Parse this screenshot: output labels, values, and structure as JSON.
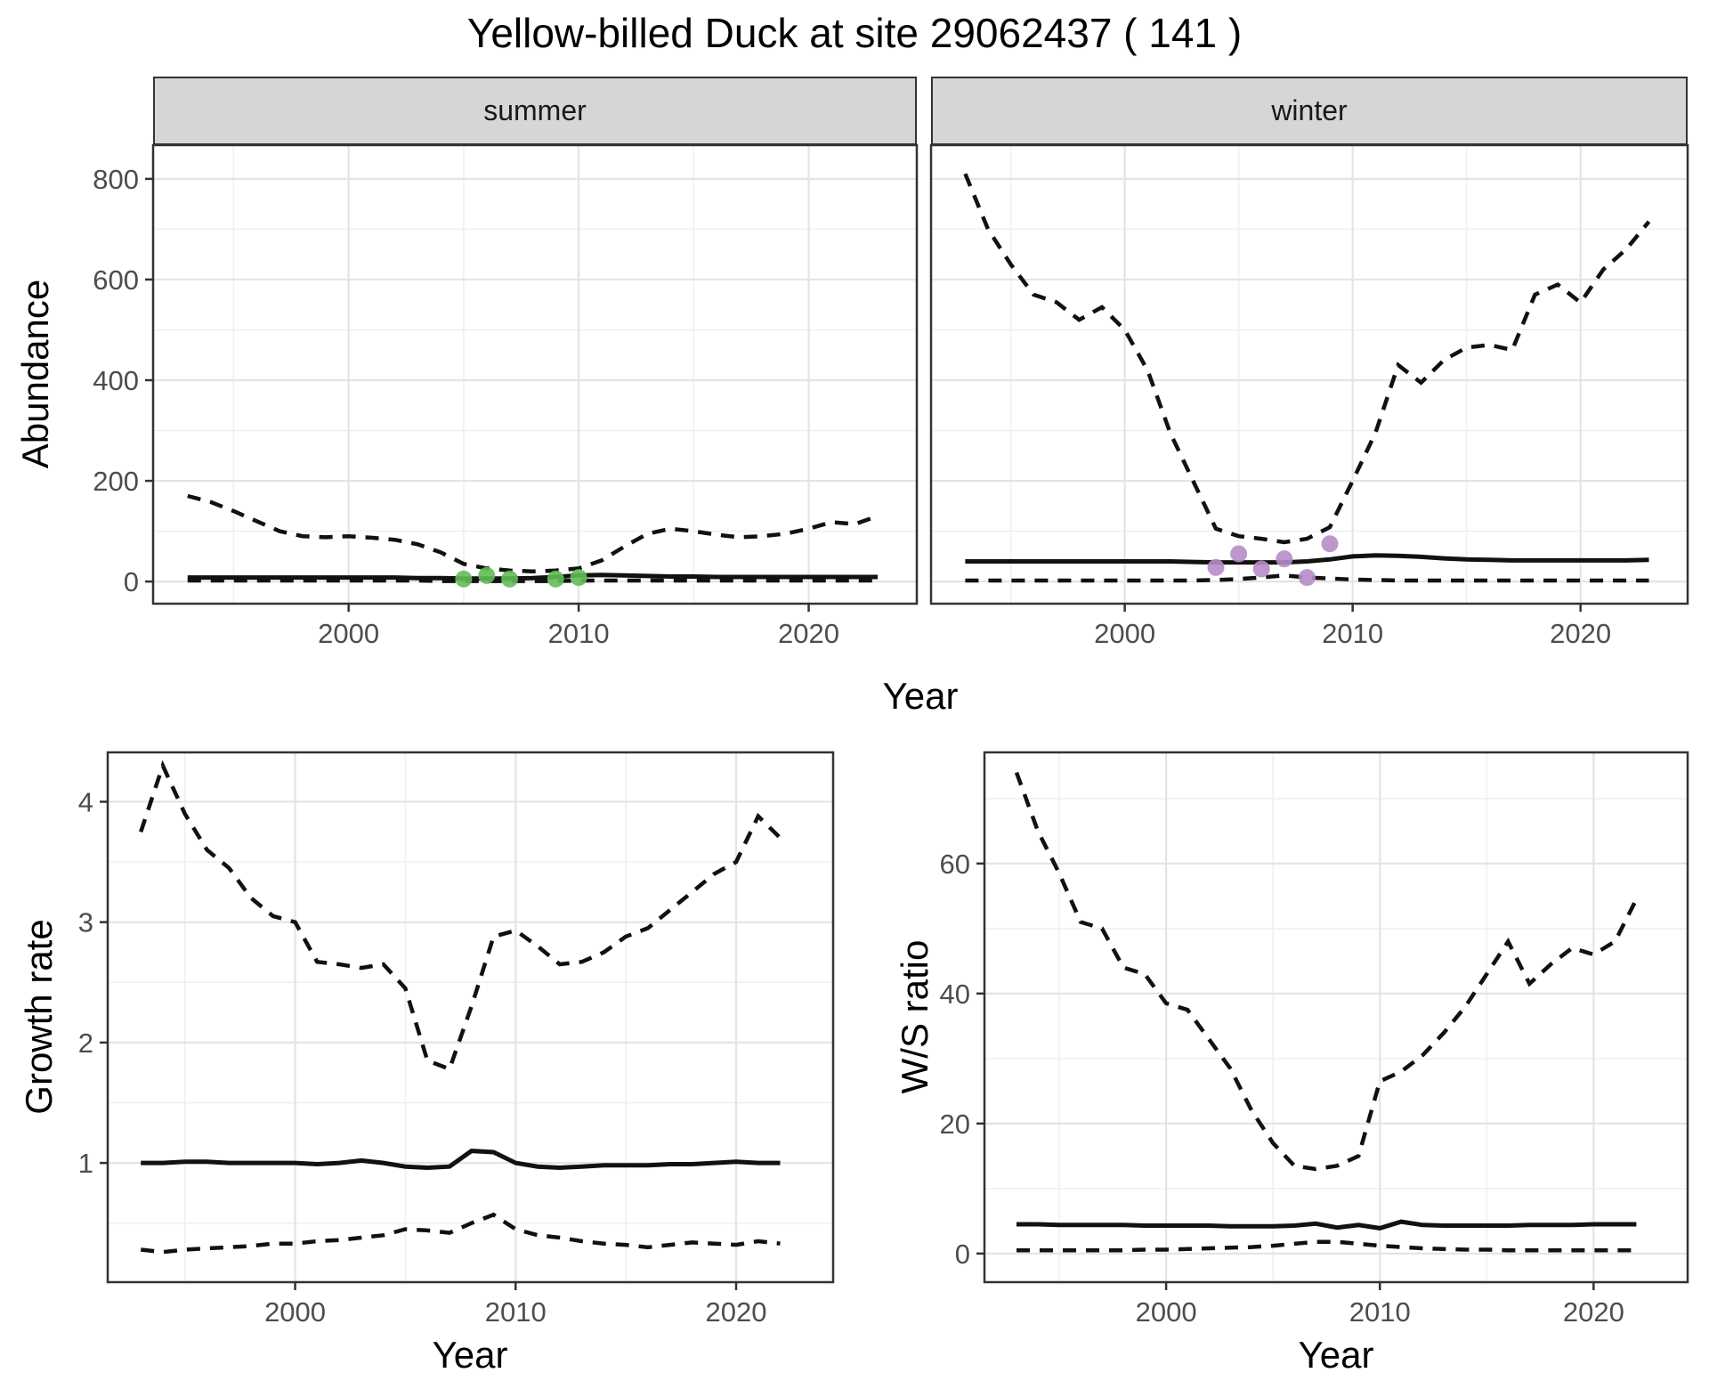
{
  "title": "Yellow-billed Duck at site 29062437 ( 141 )",
  "labels": {
    "x_shared": "Year"
  },
  "colors": {
    "summer_points": "#63bc58",
    "winter_points": "#b78cc8",
    "line": "#111111",
    "grid_major": "#e4e4e4",
    "grid_minor": "#efefef",
    "panel_border": "#333333",
    "tick_text": "#4d4d4d",
    "strip_fill": "#d6d6d6"
  },
  "chart_data": [
    {
      "type": "line",
      "facet": "summer",
      "ylabel": "Abundance",
      "xlabel": "Year",
      "xlim": [
        1991.5,
        2024.7
      ],
      "ylim": [
        -44,
        867
      ],
      "xticks": [
        2000,
        2010,
        2020
      ],
      "xminor": [
        1995,
        2005,
        2015
      ],
      "yticks": [
        0,
        200,
        400,
        600,
        800
      ],
      "yminor": [
        100,
        300,
        500,
        700
      ],
      "show_y_labels": true,
      "grid": true,
      "legend": "none",
      "x": [
        1993,
        1994,
        1995,
        1996,
        1997,
        1998,
        1999,
        2000,
        2001,
        2002,
        2003,
        2004,
        2005,
        2006,
        2007,
        2008,
        2009,
        2010,
        2011,
        2012,
        2013,
        2014,
        2015,
        2016,
        2017,
        2018,
        2019,
        2020,
        2021,
        2022,
        2023
      ],
      "series": [
        {
          "name": "upper_ci",
          "style": "dashed",
          "values": [
            170,
            158,
            140,
            120,
            100,
            90,
            88,
            90,
            87,
            83,
            74,
            58,
            35,
            26,
            22,
            20,
            22,
            26,
            42,
            70,
            95,
            105,
            100,
            93,
            88,
            90,
            95,
            105,
            118,
            114,
            130
          ]
        },
        {
          "name": "median",
          "style": "solid",
          "values": [
            8,
            8,
            8,
            8,
            8,
            8,
            8,
            8,
            8,
            8,
            7,
            7,
            6,
            6,
            6,
            7,
            9,
            12,
            13,
            12,
            11,
            10,
            10,
            9,
            9,
            9,
            9,
            9,
            9,
            9,
            9
          ]
        },
        {
          "name": "lower_ci",
          "style": "dashed",
          "values": [
            2,
            2,
            2,
            2,
            2,
            2,
            2,
            2,
            2,
            2,
            2,
            1,
            1,
            1,
            1,
            1,
            1,
            2,
            2,
            2,
            2,
            2,
            2,
            2,
            2,
            2,
            2,
            2,
            2,
            2,
            2
          ]
        }
      ],
      "points": {
        "name": "summer_observations",
        "color": "#63bc58",
        "x": [
          2005,
          2006,
          2007,
          2009,
          2010
        ],
        "y": [
          5,
          12,
          5,
          5,
          8
        ]
      }
    },
    {
      "type": "line",
      "facet": "winter",
      "ylabel": "Abundance",
      "xlabel": "Year",
      "xlim": [
        1991.5,
        2024.7
      ],
      "ylim": [
        -44,
        867
      ],
      "xticks": [
        2000,
        2010,
        2020
      ],
      "xminor": [
        1995,
        2005,
        2015
      ],
      "yticks": [
        0,
        200,
        400,
        600,
        800
      ],
      "yminor": [
        100,
        300,
        500,
        700
      ],
      "show_y_labels": false,
      "grid": true,
      "legend": "none",
      "x": [
        1993,
        1994,
        1995,
        1996,
        1997,
        1998,
        1999,
        2000,
        2001,
        2002,
        2003,
        2004,
        2005,
        2006,
        2007,
        2008,
        2009,
        2010,
        2011,
        2012,
        2013,
        2014,
        2015,
        2016,
        2017,
        2018,
        2019,
        2020,
        2021,
        2022,
        2023
      ],
      "series": [
        {
          "name": "upper_ci",
          "style": "dashed",
          "values": [
            810,
            700,
            630,
            570,
            555,
            520,
            545,
            500,
            420,
            295,
            200,
            105,
            90,
            85,
            78,
            85,
            108,
            200,
            295,
            430,
            395,
            440,
            465,
            470,
            460,
            570,
            590,
            554,
            620,
            660,
            715
          ]
        },
        {
          "name": "median",
          "style": "solid",
          "values": [
            40,
            40,
            40,
            40,
            40,
            40,
            40,
            40,
            40,
            40,
            39,
            38,
            38,
            38,
            38,
            40,
            44,
            50,
            52,
            51,
            49,
            46,
            44,
            43,
            42,
            42,
            42,
            42,
            42,
            42,
            43
          ]
        },
        {
          "name": "lower_ci",
          "style": "dashed",
          "values": [
            2,
            2,
            2,
            2,
            2,
            2,
            2,
            2,
            2,
            2,
            2,
            3,
            5,
            8,
            12,
            8,
            6,
            4,
            3,
            2,
            2,
            2,
            2,
            2,
            2,
            2,
            2,
            2,
            2,
            2,
            2
          ]
        }
      ],
      "points": {
        "name": "winter_observations",
        "color": "#b78cc8",
        "x": [
          2004,
          2005,
          2006,
          2007,
          2008,
          2009
        ],
        "y": [
          28,
          55,
          25,
          45,
          8,
          75
        ]
      }
    },
    {
      "type": "line",
      "facet": "",
      "ylabel": "Growth rate",
      "xlabel": "Year",
      "xlim": [
        1991.5,
        2024.4
      ],
      "ylim": [
        0.01,
        4.41
      ],
      "xticks": [
        2000,
        2010,
        2020
      ],
      "xminor": [
        1995,
        2005,
        2015
      ],
      "yticks": [
        1,
        2,
        3,
        4
      ],
      "yminor": [
        0.5,
        1.5,
        2.5,
        3.5
      ],
      "show_y_labels": true,
      "grid": true,
      "legend": "none",
      "x": [
        1993,
        1994,
        1995,
        1996,
        1997,
        1998,
        1999,
        2000,
        2001,
        2002,
        2003,
        2004,
        2005,
        2006,
        2007,
        2008,
        2009,
        2010,
        2011,
        2012,
        2013,
        2014,
        2015,
        2016,
        2017,
        2018,
        2019,
        2020,
        2021,
        2022
      ],
      "series": [
        {
          "name": "upper_ci",
          "style": "dashed",
          "values": [
            3.75,
            4.3,
            3.9,
            3.6,
            3.45,
            3.2,
            3.05,
            3.0,
            2.67,
            2.65,
            2.62,
            2.65,
            2.45,
            1.85,
            1.78,
            2.3,
            2.88,
            2.93,
            2.8,
            2.65,
            2.67,
            2.75,
            2.88,
            2.95,
            3.1,
            3.25,
            3.4,
            3.5,
            3.88,
            3.7
          ]
        },
        {
          "name": "median",
          "style": "solid",
          "values": [
            1.0,
            1.0,
            1.01,
            1.01,
            1.0,
            1.0,
            1.0,
            1.0,
            0.99,
            1.0,
            1.02,
            1.0,
            0.97,
            0.96,
            0.97,
            1.1,
            1.09,
            1.0,
            0.97,
            0.96,
            0.97,
            0.98,
            0.98,
            0.98,
            0.99,
            0.99,
            1.0,
            1.01,
            1.0,
            1.0
          ]
        },
        {
          "name": "lower_ci",
          "style": "dashed",
          "values": [
            0.28,
            0.26,
            0.28,
            0.29,
            0.3,
            0.31,
            0.33,
            0.33,
            0.35,
            0.36,
            0.38,
            0.4,
            0.45,
            0.44,
            0.42,
            0.5,
            0.57,
            0.45,
            0.4,
            0.38,
            0.35,
            0.33,
            0.32,
            0.3,
            0.32,
            0.34,
            0.33,
            0.32,
            0.35,
            0.33
          ]
        }
      ],
      "points": null
    },
    {
      "type": "line",
      "facet": "",
      "ylabel": "W/S ratio",
      "xlabel": "Year",
      "xlim": [
        1991.5,
        2024.4
      ],
      "ylim": [
        -4.4,
        77.1
      ],
      "xticks": [
        2000,
        2010,
        2020
      ],
      "xminor": [
        1995,
        2005,
        2015
      ],
      "yticks": [
        0,
        20,
        40,
        60
      ],
      "yminor": [
        10,
        30,
        50,
        70
      ],
      "show_y_labels": true,
      "grid": true,
      "legend": "none",
      "x": [
        1993,
        1994,
        1995,
        1996,
        1997,
        1998,
        1999,
        2000,
        2001,
        2002,
        2003,
        2004,
        2005,
        2006,
        2007,
        2008,
        2009,
        2010,
        2011,
        2012,
        2013,
        2014,
        2015,
        2016,
        2017,
        2018,
        2019,
        2020,
        2021,
        2022
      ],
      "series": [
        {
          "name": "upper_ci",
          "style": "dashed",
          "values": [
            74,
            65,
            58.5,
            51,
            50,
            44,
            43,
            38.5,
            37.5,
            33,
            28.5,
            22,
            17,
            13.5,
            13,
            13.5,
            15,
            26.5,
            28,
            30.5,
            34,
            38,
            43,
            48,
            41.5,
            44.5,
            47,
            46,
            48,
            54.5
          ]
        },
        {
          "name": "median",
          "style": "solid",
          "values": [
            4.5,
            4.5,
            4.4,
            4.4,
            4.4,
            4.4,
            4.3,
            4.3,
            4.3,
            4.3,
            4.2,
            4.2,
            4.2,
            4.3,
            4.6,
            4.0,
            4.4,
            3.9,
            4.9,
            4.4,
            4.3,
            4.3,
            4.3,
            4.3,
            4.4,
            4.4,
            4.4,
            4.5,
            4.5,
            4.5
          ]
        },
        {
          "name": "lower_ci",
          "style": "dashed",
          "values": [
            0.5,
            0.5,
            0.5,
            0.5,
            0.5,
            0.5,
            0.6,
            0.6,
            0.7,
            0.8,
            0.9,
            1.0,
            1.2,
            1.5,
            1.8,
            1.8,
            1.5,
            1.2,
            1.0,
            0.8,
            0.7,
            0.6,
            0.6,
            0.5,
            0.5,
            0.5,
            0.5,
            0.5,
            0.5,
            0.5
          ]
        }
      ],
      "points": null
    }
  ]
}
